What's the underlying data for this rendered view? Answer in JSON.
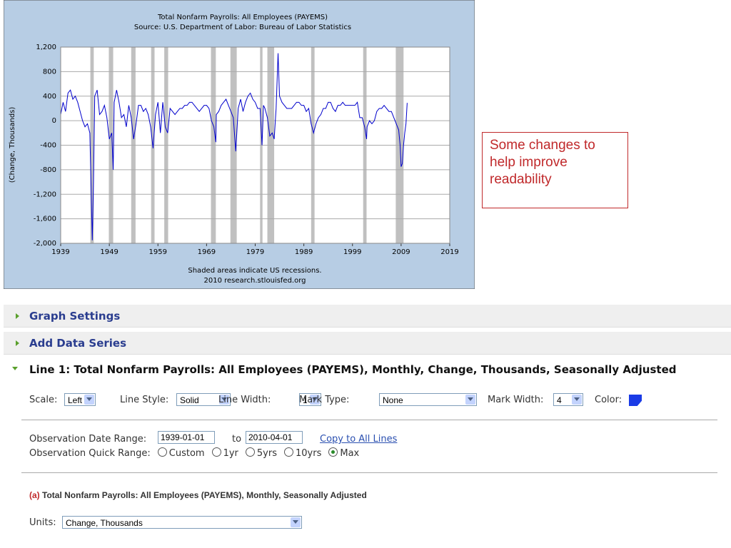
{
  "chart_data": {
    "type": "line",
    "title": "Total Nonfarm Payrolls: All Employees (PAYEMS)",
    "subtitle": "Source: U.S. Department of Labor: Bureau of Labor Statistics",
    "y_label": "(Change, Thousands)",
    "note": "Shaded areas indicate US recessions.",
    "credit": "2010 research.stlouisfed.org",
    "x": [
      1939,
      1939.5,
      1940,
      1940.5,
      1941,
      1941.5,
      1942,
      1942.5,
      1943,
      1943.5,
      1944,
      1944.5,
      1945,
      1945.5,
      1945.75,
      1946,
      1946.5,
      1947,
      1947.5,
      1948,
      1948.5,
      1949,
      1949.5,
      1949.8,
      1950,
      1950.5,
      1951,
      1951.5,
      1952,
      1952.5,
      1953,
      1953.5,
      1954,
      1954.5,
      1955,
      1955.5,
      1956,
      1956.5,
      1957,
      1957.5,
      1958,
      1958.5,
      1959,
      1959.5,
      1960,
      1960.5,
      1961,
      1961.5,
      1962,
      1962.5,
      1963,
      1963.5,
      1964,
      1964.5,
      1965,
      1965.5,
      1966,
      1966.5,
      1967,
      1967.5,
      1968,
      1968.5,
      1969,
      1969.5,
      1970,
      1970.5,
      1970.9,
      1971,
      1971.5,
      1972,
      1972.5,
      1973,
      1973.5,
      1974,
      1974.5,
      1975,
      1975.5,
      1976,
      1976.5,
      1977,
      1977.5,
      1978,
      1978.5,
      1979,
      1979.5,
      1980,
      1980.4,
      1980.7,
      1981,
      1981.5,
      1982,
      1982.5,
      1982.9,
      1983.3,
      1983.7,
      1984,
      1984.5,
      1985,
      1985.5,
      1986,
      1986.5,
      1987,
      1987.5,
      1988,
      1988.5,
      1989,
      1989.5,
      1990,
      1990.5,
      1991,
      1991.5,
      1992,
      1992.5,
      1993,
      1993.5,
      1994,
      1994.5,
      1995,
      1995.5,
      1996,
      1996.5,
      1997,
      1997.5,
      1998,
      1998.5,
      1999,
      1999.5,
      2000,
      2000.5,
      2001,
      2001.5,
      2001.9,
      2002,
      2002.5,
      2003,
      2003.5,
      2004,
      2004.5,
      2005,
      2005.5,
      2006,
      2006.5,
      2007,
      2007.5,
      2008,
      2008.5,
      2008.8,
      2009,
      2009.25,
      2009.5,
      2009.75,
      2010,
      2010.25
    ],
    "series": [
      {
        "name": "PAYEMS",
        "color": "#0000cc",
        "values": [
          100,
          300,
          150,
          450,
          500,
          350,
          400,
          300,
          150,
          0,
          -100,
          -50,
          -200,
          -1950,
          -1000,
          400,
          500,
          100,
          150,
          250,
          50,
          -300,
          -200,
          -800,
          300,
          500,
          300,
          50,
          100,
          -100,
          250,
          50,
          -300,
          -50,
          250,
          250,
          150,
          200,
          100,
          -100,
          -450,
          100,
          300,
          -200,
          300,
          -100,
          -200,
          200,
          150,
          100,
          150,
          200,
          200,
          250,
          250,
          300,
          300,
          250,
          200,
          150,
          200,
          250,
          250,
          200,
          0,
          -100,
          -350,
          100,
          150,
          250,
          300,
          350,
          250,
          150,
          50,
          -500,
          200,
          350,
          150,
          300,
          400,
          450,
          350,
          300,
          200,
          200,
          -400,
          250,
          200,
          50,
          -250,
          -200,
          -300,
          200,
          1100,
          400,
          300,
          250,
          200,
          200,
          200,
          250,
          300,
          300,
          250,
          250,
          150,
          200,
          -50,
          -200,
          -50,
          50,
          100,
          200,
          200,
          300,
          300,
          200,
          150,
          250,
          250,
          300,
          250,
          250,
          250,
          250,
          250,
          300,
          50,
          50,
          -100,
          -300,
          -100,
          0,
          -50,
          0,
          150,
          200,
          200,
          250,
          200,
          150,
          150,
          50,
          -50,
          -150,
          -400,
          -750,
          -700,
          -400,
          -200,
          -50,
          290
        ]
      }
    ],
    "recessions": [
      [
        1945.1,
        1945.8
      ],
      [
        1948.9,
        1949.8
      ],
      [
        1953.5,
        1954.4
      ],
      [
        1957.6,
        1958.3
      ],
      [
        1960.3,
        1961.1
      ],
      [
        1969.9,
        1970.9
      ],
      [
        1973.9,
        1975.2
      ],
      [
        1980,
        1980.5
      ],
      [
        1981.5,
        1982.9
      ],
      [
        1990.5,
        1991.2
      ],
      [
        2001.2,
        2001.9
      ],
      [
        2007.9,
        2009.5
      ]
    ],
    "xlim": [
      1939,
      2019
    ],
    "xticks": [
      1939,
      1949,
      1959,
      1969,
      1979,
      1989,
      1999,
      2009,
      2019
    ],
    "ylim": [
      -2000,
      1200
    ],
    "yticks": [
      {
        "value": 1200,
        "label": "1,200"
      },
      800,
      400,
      0,
      -400,
      -800,
      {
        "value": -1200,
        "label": "-1,200"
      },
      {
        "value": -1600,
        "label": "-1,600"
      },
      {
        "value": -2000,
        "label": "-2,000"
      }
    ],
    "grid": true
  },
  "annotation": "Some changes to help improve readability",
  "sections": [
    "Graph Settings",
    "Add Data Series"
  ],
  "line1": {
    "title": "Line 1: Total Nonfarm Payrolls: All Employees (PAYEMS), Monthly, Change, Thousands, Seasonally Adjusted",
    "controls": [
      {
        "label": "Scale:",
        "value": "Left"
      },
      {
        "label": "Line Style:",
        "value": "Solid"
      },
      {
        "label": "Line Width:",
        "value": "1"
      },
      {
        "label": "Mark Type:",
        "value": "None"
      },
      {
        "label": "Mark Width:",
        "value": "4"
      }
    ],
    "color_label": "Color:",
    "date_range_label": "Observation Date Range:",
    "start": "1939-01-01",
    "to": "to",
    "end": "2010-04-01",
    "copy": "Copy to All Lines",
    "quick_label": "Observation Quick Range:",
    "quick": [
      "Custom",
      "1yr",
      "5yrs",
      "10yrs",
      "Max"
    ],
    "series_tag": "(a)",
    "series_title": "Total Nonfarm Payrolls: All Employees (PAYEMS), Monthly, Seasonally Adjusted",
    "units_label": "Units:",
    "units": "Change, Thousands"
  }
}
